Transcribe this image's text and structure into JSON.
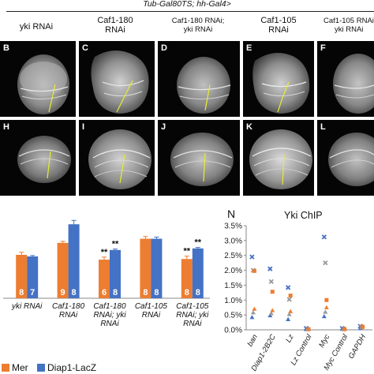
{
  "header": {
    "genotype": "Tub-Gal80TS; hh-Gal4>"
  },
  "columns": [
    {
      "l1": "yki RNAi",
      "l2": ""
    },
    {
      "l1": "Caf1-180",
      "l2": "RNAi"
    },
    {
      "l1": "Caf1-180 RNAi;",
      "l2": "yki RNAi"
    },
    {
      "l1": "Caf1-105",
      "l2": "RNAi"
    },
    {
      "l1": "Caf1-105 RNAi",
      "l2": "yki RNAi"
    }
  ],
  "panels_top": [
    "B",
    "C",
    "D",
    "E",
    "F"
  ],
  "panels_bottom": [
    "H",
    "I",
    "J",
    "K",
    "L"
  ],
  "chart_data": [
    {
      "type": "bar",
      "title": "",
      "categories": [
        "yki RNAi",
        "Caf1-180 RNAi",
        "Caf1-180 RNAi; yki RNAi",
        "Caf1-105 RNAi",
        "Caf1-105 RNAi; yki RNAi"
      ],
      "category_lines": [
        [
          "yki RNAi"
        ],
        [
          "Caf1-180",
          "RNAi"
        ],
        [
          "Caf1-180",
          "RNAi; yki",
          "RNAi"
        ],
        [
          "Caf1-105",
          "RNAi"
        ],
        [
          "Caf1-105",
          "RNAi; yki",
          "RNAi"
        ]
      ],
      "series": [
        {
          "name": "Mer",
          "color": "#ED7D31",
          "values": [
            1.35,
            1.72,
            1.2,
            1.85,
            1.22
          ],
          "errors": [
            0.08,
            0.05,
            0.08,
            0.07,
            0.09
          ],
          "n": [
            "8",
            "9",
            "6",
            "8",
            "8"
          ]
        },
        {
          "name": "Diap1-LacZ",
          "color": "#4472C4",
          "values": [
            1.3,
            2.3,
            1.5,
            1.85,
            1.55
          ],
          "errors": [
            0.03,
            0.12,
            0.03,
            0.05,
            0.03
          ],
          "n": [
            "7",
            "8",
            "8",
            "8",
            "8"
          ]
        }
      ],
      "annotations": [
        "**",
        "**",
        "**",
        "**"
      ],
      "ylim": [
        0,
        2.6
      ],
      "legend": "bottom"
    },
    {
      "type": "scatter",
      "panel_letter": "N",
      "title": "Yki ChIP",
      "categories": [
        "ban",
        "Diap1-2B2C",
        "Lz",
        "Lz Control",
        "Myc",
        "Myc Control",
        "GAPDH"
      ],
      "yticks": [
        "0.0%",
        "0.5%",
        "1.0%",
        "1.5%",
        "2.0%",
        "2.5%",
        "3.0%",
        "3.5%"
      ],
      "ylim": [
        0,
        3.5
      ],
      "series": [
        {
          "marker": "x",
          "color": "#4472C4",
          "values": [
            2.45,
            2.05,
            1.42,
            0.05,
            3.12,
            0.05,
            0.12
          ]
        },
        {
          "marker": "x",
          "color": "#999999",
          "values": [
            2.0,
            1.62,
            1.02,
            0.02,
            2.25,
            0.03,
            0.1
          ]
        },
        {
          "marker": "triangle",
          "color": "#ED7D31",
          "values": [
            0.7,
            0.65,
            0.62,
            0.03,
            0.75,
            0.04,
            0.12
          ]
        },
        {
          "marker": "triangle",
          "color": "#4472C4",
          "values": [
            0.42,
            0.48,
            0.35,
            0.02,
            0.45,
            0.03,
            0.05
          ]
        },
        {
          "marker": "triangle",
          "color": "#999999",
          "values": [
            0.58,
            0.55,
            0.52,
            0.02,
            0.6,
            0.03,
            0.08
          ]
        },
        {
          "marker": "square",
          "color": "#ED7D31",
          "values": [
            1.98,
            1.28,
            1.15,
            0.02,
            1.0,
            0.02,
            0.1
          ]
        }
      ]
    }
  ],
  "legend": {
    "items": [
      {
        "label": "Mer",
        "color": "#ED7D31"
      },
      {
        "label": "Diap1-LacZ",
        "color": "#4472C4"
      }
    ]
  }
}
